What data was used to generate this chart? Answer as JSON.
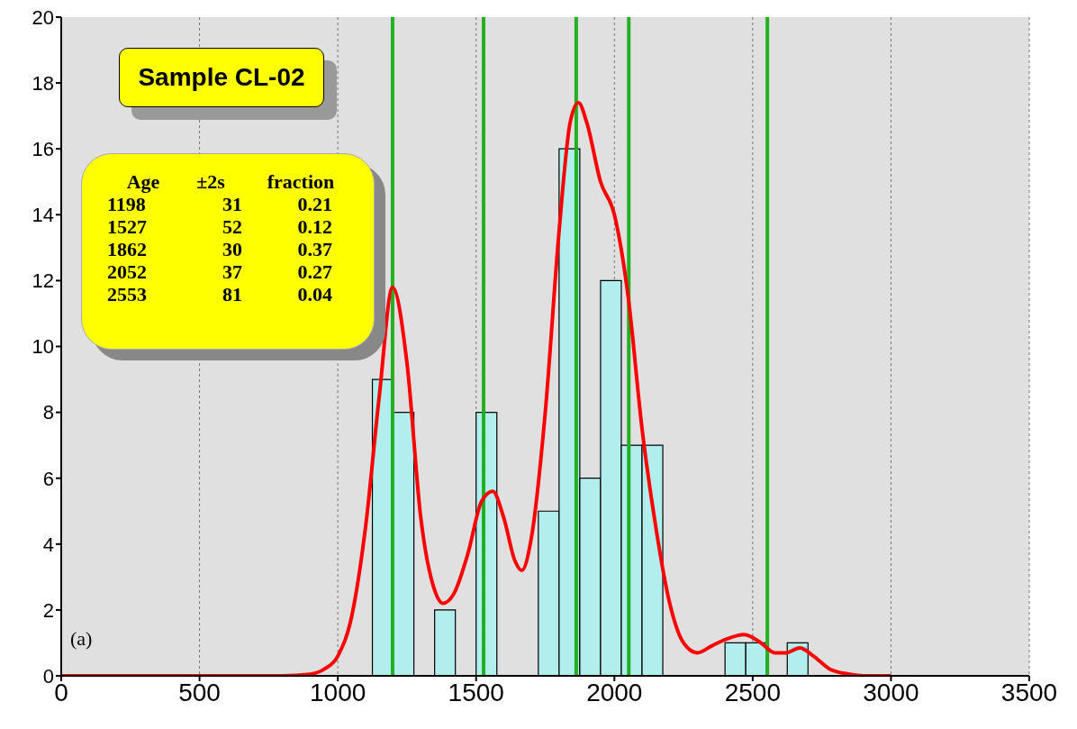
{
  "chart_data": {
    "type": "histogram",
    "title": "Sample CL-02",
    "annotations": [
      "(a)",
      "Age ±2s fraction",
      "1198 31 0.21",
      "1527 52 0.12",
      "1862 30 0.37",
      "2052 37 0.27",
      "2553 81 0.04"
    ],
    "series": [
      {
        "color": "#b2eeee",
        "bins": [
          1125,
          1200,
          1275,
          1350,
          1425,
          1500,
          1575,
          1650,
          1725,
          1800,
          1875,
          1950,
          2025,
          2100,
          2175,
          2250,
          2325,
          2400,
          2475,
          2550,
          2625,
          2700
        ],
        "values": [
          9,
          8,
          0,
          2,
          0,
          8,
          0,
          0,
          5,
          16,
          6,
          12,
          7,
          7,
          0,
          0,
          0,
          1,
          1,
          0,
          1
        ]
      },
      {
        "type": "line",
        "color": "#ff0000",
        "x": [
          0,
          800,
          900,
          950,
          1000,
          1050,
          1100,
          1150,
          1198,
          1250,
          1300,
          1350,
          1380,
          1420,
          1470,
          1520,
          1560,
          1600,
          1640,
          1665,
          1700,
          1750,
          1800,
          1840,
          1870,
          1900,
          1950,
          2000,
          2050,
          2100,
          2150,
          2200,
          2250,
          2300,
          2350,
          2400,
          2470,
          2530,
          2580,
          2620,
          2670,
          2720,
          2780,
          2850,
          2900,
          3000
        ],
        "values": [
          0,
          0,
          0.05,
          0.2,
          0.6,
          1.8,
          4.5,
          8.5,
          11.8,
          9.5,
          4.8,
          2.6,
          2.2,
          2.5,
          3.7,
          5.3,
          5.6,
          4.8,
          3.5,
          3.2,
          4.2,
          8.0,
          13.5,
          16.8,
          17.4,
          16.8,
          15.0,
          14.0,
          11.5,
          7.5,
          4.5,
          2.2,
          1.0,
          0.7,
          0.9,
          1.1,
          1.25,
          1.0,
          0.7,
          0.7,
          0.85,
          0.6,
          0.2,
          0.05,
          0,
          0
        ]
      }
    ],
    "ref_lines": [
      {
        "axis": "x",
        "value": 1198,
        "color": "#22b022"
      },
      {
        "axis": "x",
        "value": 1527,
        "color": "#22b022"
      },
      {
        "axis": "x",
        "value": 1862,
        "color": "#22b022"
      },
      {
        "axis": "x",
        "value": 2052,
        "color": "#22b022"
      },
      {
        "axis": "x",
        "value": 2553,
        "color": "#22b022"
      }
    ],
    "xlim": [
      0,
      3500
    ],
    "xticks": [
      0,
      500,
      1000,
      1500,
      2000,
      2500,
      3000,
      3500
    ],
    "ylim": [
      0,
      20
    ],
    "yticks": [
      0,
      2,
      4,
      6,
      8,
      10,
      12,
      14,
      16,
      18,
      20
    ],
    "grid": "x",
    "marker": "none",
    "line_style": "solid"
  }
}
